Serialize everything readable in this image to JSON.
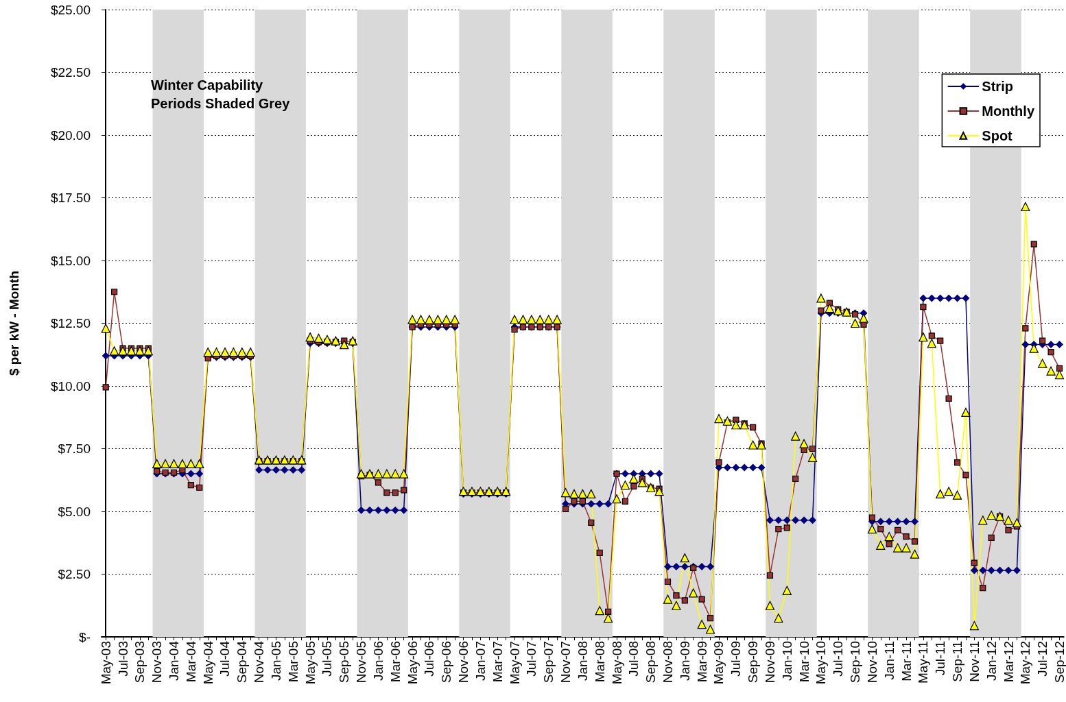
{
  "chart_data": {
    "type": "line",
    "ylabel": "$ per kW - Month",
    "categories": [
      "May-03",
      null,
      "Jul-03",
      null,
      "Sep-03",
      null,
      "Nov-03",
      null,
      "Jan-04",
      null,
      "Mar-04",
      null,
      "May-04",
      null,
      "Jul-04",
      null,
      "Sep-04",
      null,
      "Nov-04",
      null,
      "Jan-05",
      null,
      "Mar-05",
      null,
      "May-05",
      null,
      "Jul-05",
      null,
      "Sep-05",
      null,
      "Nov-05",
      null,
      "Jan-06",
      null,
      "Mar-06",
      null,
      "May-06",
      null,
      "Jul-06",
      null,
      "Sep-06",
      null,
      "Nov-06",
      null,
      "Jan-07",
      null,
      "Mar-07",
      null,
      "May-07",
      null,
      "Jul-07",
      null,
      "Sep-07",
      null,
      "Nov-07",
      null,
      "Jan-08",
      null,
      "Mar-08",
      null,
      "May-08",
      null,
      "Jul-08",
      null,
      "Sep-08",
      null,
      "Nov-08",
      null,
      "Jan-09",
      null,
      "Mar-09",
      null,
      "May-09",
      null,
      "Jul-09",
      null,
      "Sep-09",
      null,
      "Nov-09",
      null,
      "Jan-10",
      null,
      "Mar-10",
      null,
      "May-10",
      null,
      "Jul-10",
      null,
      "Sep-10",
      null,
      "Nov-10",
      null,
      "Jan-11",
      null,
      "Mar-11",
      null,
      "May-11",
      null,
      "Jul-11",
      null,
      "Sep-11",
      null,
      "Nov-11",
      null,
      "Jan-12",
      null,
      "Mar-12",
      null,
      "May-12",
      null,
      "Jul-12",
      null,
      "Sep-12"
    ],
    "series": [
      {
        "name": "Strip",
        "color": "#000080",
        "marker": "diamond",
        "values": [
          11.2,
          11.2,
          11.2,
          11.2,
          11.2,
          11.2,
          6.5,
          6.5,
          6.5,
          6.5,
          6.5,
          6.5,
          11.15,
          11.15,
          11.15,
          11.15,
          11.15,
          11.15,
          6.65,
          6.65,
          6.65,
          6.65,
          6.65,
          6.65,
          11.7,
          11.7,
          11.7,
          11.7,
          11.7,
          11.7,
          5.05,
          5.05,
          5.05,
          5.05,
          5.05,
          5.05,
          12.35,
          12.35,
          12.35,
          12.35,
          12.35,
          12.35,
          5.7,
          5.7,
          5.7,
          5.7,
          5.7,
          5.7,
          12.35,
          12.35,
          12.35,
          12.35,
          12.35,
          12.35,
          5.3,
          5.3,
          5.3,
          5.3,
          5.3,
          5.3,
          6.5,
          6.5,
          6.5,
          6.5,
          6.5,
          6.5,
          2.8,
          2.8,
          2.8,
          2.8,
          2.8,
          2.8,
          6.75,
          6.75,
          6.75,
          6.75,
          6.75,
          6.75,
          4.65,
          4.65,
          4.65,
          4.65,
          4.65,
          4.65,
          12.9,
          12.9,
          12.9,
          12.9,
          12.9,
          12.9,
          4.6,
          4.6,
          4.6,
          4.6,
          4.6,
          4.6,
          13.5,
          13.5,
          13.5,
          13.5,
          13.5,
          13.5,
          2.65,
          2.65,
          2.65,
          2.65,
          2.65,
          2.65,
          11.65,
          11.65,
          11.65,
          11.65,
          11.65
        ]
      },
      {
        "name": "Monthly",
        "color": "#993333",
        "marker": "square",
        "values": [
          9.95,
          13.75,
          11.5,
          11.5,
          11.5,
          11.5,
          6.6,
          6.55,
          6.55,
          6.65,
          6.05,
          5.95,
          11.1,
          11.2,
          11.2,
          11.2,
          11.2,
          11.2,
          7.0,
          7.0,
          7.0,
          7.0,
          7.0,
          7.0,
          11.8,
          11.75,
          11.75,
          11.75,
          11.8,
          11.75,
          6.4,
          6.45,
          6.15,
          5.75,
          5.75,
          5.85,
          12.35,
          12.45,
          12.45,
          12.45,
          12.45,
          12.45,
          5.75,
          5.75,
          5.75,
          5.75,
          5.75,
          5.75,
          12.25,
          12.35,
          12.35,
          12.35,
          12.35,
          12.35,
          5.1,
          5.4,
          5.4,
          4.55,
          3.35,
          1.0,
          6.5,
          5.4,
          6.0,
          6.3,
          5.95,
          5.9,
          2.2,
          1.65,
          1.45,
          2.75,
          1.5,
          0.75,
          6.95,
          8.55,
          8.65,
          8.5,
          8.35,
          7.7,
          2.45,
          4.3,
          4.35,
          6.3,
          7.45,
          7.5,
          13.0,
          13.3,
          13.05,
          12.95,
          12.85,
          12.45,
          4.75,
          4.3,
          3.7,
          4.25,
          4.0,
          3.8,
          13.15,
          12.0,
          11.8,
          9.5,
          6.95,
          6.45,
          2.95,
          1.95,
          3.95,
          4.8,
          4.25,
          4.4,
          12.3,
          15.65,
          11.8,
          11.35,
          10.7
        ]
      },
      {
        "name": "Spot",
        "color": "#ffff00",
        "marker": "triangle",
        "values": [
          12.3,
          11.4,
          11.4,
          11.4,
          11.4,
          11.4,
          6.9,
          6.9,
          6.9,
          6.9,
          6.9,
          6.9,
          11.35,
          11.35,
          11.35,
          11.35,
          11.35,
          11.35,
          7.05,
          7.05,
          7.05,
          7.05,
          7.05,
          7.05,
          11.95,
          11.9,
          11.85,
          11.8,
          11.65,
          11.8,
          6.5,
          6.5,
          6.5,
          6.5,
          6.5,
          6.5,
          12.65,
          12.65,
          12.65,
          12.65,
          12.65,
          12.65,
          5.8,
          5.8,
          5.8,
          5.8,
          5.8,
          5.8,
          12.65,
          12.65,
          12.65,
          12.65,
          12.65,
          12.65,
          5.75,
          5.7,
          5.7,
          5.7,
          1.05,
          0.75,
          5.5,
          6.05,
          6.3,
          6.15,
          5.95,
          5.8,
          1.5,
          1.25,
          3.15,
          1.75,
          0.5,
          0.3,
          8.7,
          8.6,
          8.45,
          8.45,
          7.65,
          7.65,
          1.25,
          0.75,
          1.85,
          8.0,
          7.7,
          7.15,
          13.5,
          13.1,
          13.0,
          12.95,
          12.5,
          12.7,
          4.3,
          3.65,
          4.0,
          3.55,
          3.55,
          3.3,
          11.95,
          11.7,
          5.7,
          5.8,
          5.65,
          8.95,
          0.45,
          4.65,
          4.85,
          4.8,
          4.65,
          4.55,
          17.15,
          11.5,
          10.9,
          10.6,
          10.45
        ]
      }
    ],
    "ylim": [
      0,
      25
    ],
    "yticks": [
      {
        "value": 0,
        "label": "$-"
      },
      {
        "value": 2.5,
        "label": "$2.50"
      },
      {
        "value": 5,
        "label": "$5.00"
      },
      {
        "value": 7.5,
        "label": "$7.50"
      },
      {
        "value": 10,
        "label": "$10.00"
      },
      {
        "value": 12.5,
        "label": "$12.50"
      },
      {
        "value": 15,
        "label": "$15.00"
      },
      {
        "value": 17.5,
        "label": "$17.50"
      },
      {
        "value": 20,
        "label": "$20.00"
      },
      {
        "value": 22.5,
        "label": "$22.50"
      },
      {
        "value": 25,
        "label": "$25.00"
      }
    ],
    "grid": "y",
    "legend": "top right",
    "line_style": "solid",
    "bands": [
      {
        "axis": "x",
        "from": "Nov-03",
        "to": "May-04",
        "color": "#d9d9d9"
      },
      {
        "axis": "x",
        "from": "Nov-04",
        "to": "May-05",
        "color": "#d9d9d9"
      },
      {
        "axis": "x",
        "from": "Nov-05",
        "to": "May-06",
        "color": "#d9d9d9"
      },
      {
        "axis": "x",
        "from": "Nov-06",
        "to": "May-07",
        "color": "#d9d9d9"
      },
      {
        "axis": "x",
        "from": "Nov-07",
        "to": "May-08",
        "color": "#d9d9d9"
      },
      {
        "axis": "x",
        "from": "Nov-08",
        "to": "May-09",
        "color": "#d9d9d9"
      },
      {
        "axis": "x",
        "from": "Nov-09",
        "to": "May-10",
        "color": "#d9d9d9"
      },
      {
        "axis": "x",
        "from": "Nov-10",
        "to": "May-11",
        "color": "#d9d9d9"
      },
      {
        "axis": "x",
        "from": "Nov-11",
        "to": "May-12",
        "color": "#d9d9d9"
      }
    ],
    "annotations": [
      "Winter Capability Periods Shaded Grey"
    ]
  }
}
